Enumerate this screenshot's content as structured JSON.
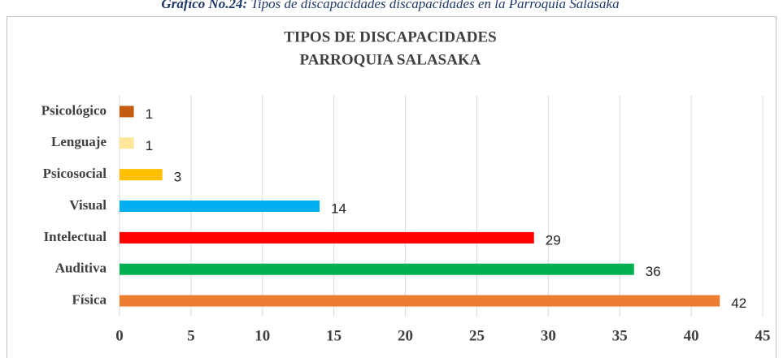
{
  "caption": {
    "label": "Gráfico No.24:",
    "text": "Tipos de discapacidades discapacidades en la Parroquia Salasaka"
  },
  "chart_data": {
    "type": "barh",
    "title": [
      "TIPOS DE DISCAPACIDADES",
      "PARROQUIA SALASAKA"
    ],
    "categories": [
      "Física",
      "Auditiva",
      "Intelectual",
      "Visual",
      "Psicosocial",
      "Lenguaje",
      "Psicológico"
    ],
    "values": [
      42,
      36,
      29,
      14,
      3,
      1,
      1
    ],
    "colors": [
      "#ed7d31",
      "#00b050",
      "#ff0000",
      "#00b0f0",
      "#ffc000",
      "#ffe699",
      "#c55a11"
    ],
    "xlim": [
      0,
      45
    ],
    "xticks": [
      0,
      5,
      10,
      15,
      20,
      25,
      30,
      35,
      40,
      45
    ],
    "grid": true
  }
}
